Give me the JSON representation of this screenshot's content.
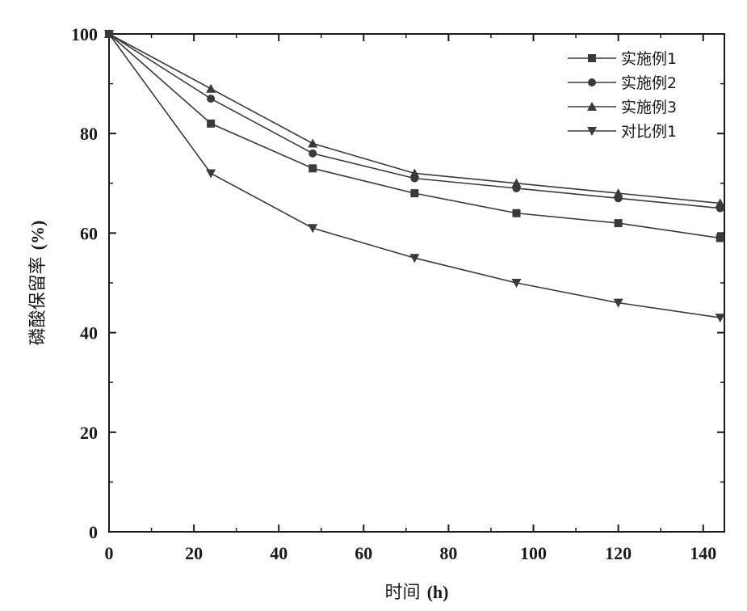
{
  "chart_data": {
    "type": "line",
    "title": "",
    "xlabel": "时间 (h)",
    "xlabel_main": "时间",
    "xlabel_unit": "(h)",
    "ylabel": "磷酸保留率 (%)",
    "ylabel_main": "磷酸保留率",
    "ylabel_unit": "(%)",
    "xlim": [
      0,
      145
    ],
    "ylim": [
      0,
      100
    ],
    "x_ticks": [
      0,
      20,
      40,
      60,
      80,
      100,
      120,
      140
    ],
    "y_ticks": [
      0,
      20,
      40,
      60,
      80,
      100
    ],
    "x_tick_labels": [
      "0",
      "20",
      "40",
      "60",
      "80",
      "100",
      "120",
      "140"
    ],
    "y_tick_labels": [
      "0",
      "20",
      "40",
      "60",
      "80",
      "100"
    ],
    "legend_position": "top-right",
    "grid": false,
    "x": [
      0,
      24,
      48,
      72,
      96,
      120,
      144
    ],
    "series": [
      {
        "name": "实施例1",
        "marker": "square",
        "values": [
          100,
          82,
          73,
          68,
          64,
          62,
          59
        ]
      },
      {
        "name": "实施例2",
        "marker": "circle",
        "values": [
          100,
          87,
          76,
          71,
          69,
          67,
          65
        ]
      },
      {
        "name": "实施例3",
        "marker": "triangle-up",
        "values": [
          100,
          89,
          78,
          72,
          70,
          68,
          66
        ]
      },
      {
        "name": "对比例1",
        "marker": "triangle-down",
        "values": [
          100,
          72,
          61,
          55,
          50,
          46,
          43
        ]
      }
    ],
    "colors": {
      "line": "#3a3a3a",
      "axis": "#1a1a1a"
    }
  }
}
